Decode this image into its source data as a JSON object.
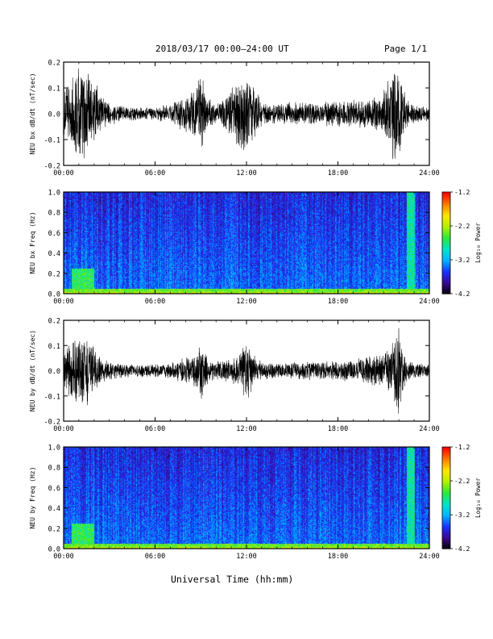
{
  "header": {
    "title": "2018/03/17  00:00–24:00 UT",
    "page": "Page 1/1"
  },
  "footer": {
    "xlabel": "Universal Time (hh:mm)"
  },
  "colorbar": {
    "label": "Log₁₀ Power",
    "ticks": [
      "-1.2",
      "-2.2",
      "-3.2",
      "-4.2"
    ],
    "range": [
      -4.2,
      -1.2
    ],
    "colors": [
      "#000000",
      "#3a0a8c",
      "#1a2fff",
      "#00b4ff",
      "#00e6c8",
      "#2ee63c",
      "#b4f000",
      "#ffe600",
      "#ff7800",
      "#ff0000"
    ]
  },
  "chart_data": [
    {
      "type": "line",
      "panel": "bx-derivative",
      "ylabel": "NEU bx dB/dt (nT/sec)",
      "xlim": [
        "00:00",
        "24:00"
      ],
      "ylim": [
        -0.2,
        0.2
      ],
      "x_ticks": [
        "00:00",
        "06:00",
        "12:00",
        "18:00",
        "24:00"
      ],
      "y_ticks": [
        "-0.2",
        "-0.1",
        "0.0",
        "0.1",
        "0.2"
      ],
      "envelope": {
        "x_hours": [
          0,
          0.5,
          1.0,
          1.5,
          2.0,
          2.5,
          3,
          4,
          5,
          6,
          7,
          8,
          8.7,
          9.0,
          9.5,
          10,
          11,
          11.5,
          12.0,
          12.5,
          13,
          14,
          15,
          16,
          17,
          18,
          19,
          20,
          21,
          21.6,
          22.0,
          22.5,
          23,
          24
        ],
        "amplitude": [
          0.1,
          0.15,
          0.2,
          0.2,
          0.14,
          0.08,
          0.05,
          0.03,
          0.03,
          0.03,
          0.04,
          0.08,
          0.11,
          0.17,
          0.07,
          0.04,
          0.1,
          0.15,
          0.2,
          0.12,
          0.05,
          0.04,
          0.05,
          0.05,
          0.05,
          0.06,
          0.06,
          0.06,
          0.1,
          0.2,
          0.2,
          0.06,
          0.04,
          0.03
        ]
      }
    },
    {
      "type": "heatmap",
      "panel": "bx-spectrogram",
      "ylabel": "NEU bx Freq (Hz)",
      "xlim": [
        "00:00",
        "24:00"
      ],
      "ylim": [
        0.0,
        1.0
      ],
      "x_ticks": [
        "00:00",
        "06:00",
        "12:00",
        "18:00",
        "24:00"
      ],
      "y_ticks": [
        "0.0",
        "0.2",
        "0.4",
        "0.6",
        "0.8",
        "1.0"
      ],
      "zlim": [
        -4.2,
        -1.2
      ],
      "features": [
        {
          "x_hours": [
            0.5,
            2.0
          ],
          "freq_hz": [
            0.0,
            0.25
          ],
          "log_power": -2.6
        },
        {
          "x_hours": [
            22.5,
            23.0
          ],
          "freq_hz": [
            0.0,
            1.0
          ],
          "log_power": -2.8
        },
        {
          "x_hours": [
            0,
            24
          ],
          "freq_hz": [
            0.0,
            0.05
          ],
          "log_power": -2.4
        }
      ]
    },
    {
      "type": "line",
      "panel": "by-derivative",
      "ylabel": "NEU by dB/dt (nT/sec)",
      "xlim": [
        "00:00",
        "24:00"
      ],
      "ylim": [
        -0.2,
        0.2
      ],
      "x_ticks": [
        "00:00",
        "06:00",
        "12:00",
        "18:00",
        "24:00"
      ],
      "y_ticks": [
        "-0.2",
        "-0.1",
        "0.0",
        "0.1",
        "0.2"
      ],
      "envelope": {
        "x_hours": [
          0,
          0.5,
          1.0,
          1.5,
          2.0,
          2.5,
          3,
          4,
          5,
          6,
          7,
          8,
          8.7,
          9.0,
          9.5,
          10,
          11,
          11.5,
          12.0,
          12.5,
          13,
          14,
          15,
          16,
          17,
          18,
          19,
          20,
          21,
          21.6,
          22.0,
          22.5,
          23,
          24
        ],
        "amplitude": [
          0.07,
          0.12,
          0.16,
          0.17,
          0.1,
          0.05,
          0.04,
          0.03,
          0.03,
          0.03,
          0.03,
          0.06,
          0.07,
          0.12,
          0.05,
          0.04,
          0.05,
          0.07,
          0.13,
          0.08,
          0.04,
          0.03,
          0.04,
          0.04,
          0.04,
          0.04,
          0.05,
          0.06,
          0.08,
          0.12,
          0.2,
          0.05,
          0.03,
          0.03
        ]
      }
    },
    {
      "type": "heatmap",
      "panel": "by-spectrogram",
      "ylabel": "NEU by Freq (Hz)",
      "xlim": [
        "00:00",
        "24:00"
      ],
      "ylim": [
        0.0,
        1.0
      ],
      "x_ticks": [
        "00:00",
        "06:00",
        "12:00",
        "18:00",
        "24:00"
      ],
      "y_ticks": [
        "0.0",
        "0.2",
        "0.4",
        "0.6",
        "0.8",
        "1.0"
      ],
      "zlim": [
        -4.2,
        -1.2
      ],
      "features": [
        {
          "x_hours": [
            0.5,
            2.0
          ],
          "freq_hz": [
            0.0,
            0.25
          ],
          "log_power": -2.6
        },
        {
          "x_hours": [
            22.5,
            23.0
          ],
          "freq_hz": [
            0.0,
            1.0
          ],
          "log_power": -2.8
        },
        {
          "x_hours": [
            0,
            24
          ],
          "freq_hz": [
            0.0,
            0.05
          ],
          "log_power": -2.4
        }
      ]
    }
  ]
}
